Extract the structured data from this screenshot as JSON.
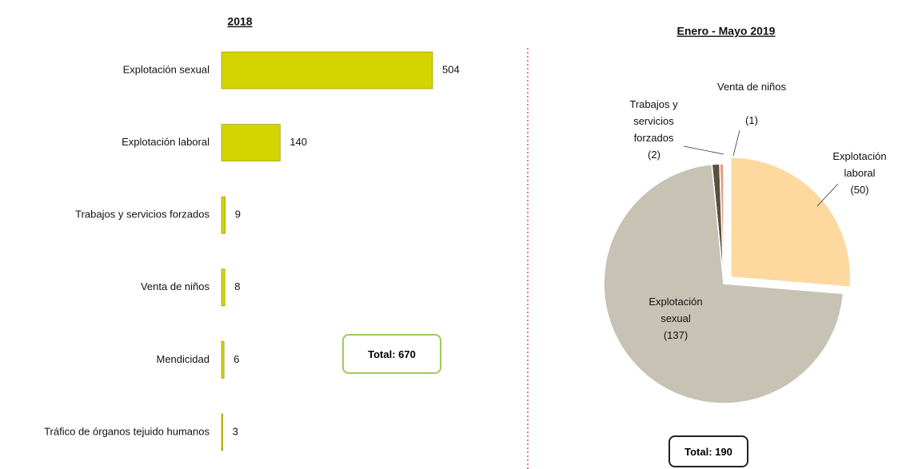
{
  "chart_data": [
    {
      "type": "bar",
      "title": "2018",
      "categories": [
        "Explotación sexual",
        "Explotación laboral",
        "Trabajos y servicios forzados",
        "Venta de niños",
        "Mendicidad",
        "Tráfico de órganos tejuido humanos"
      ],
      "values": [
        504,
        140,
        9,
        8,
        6,
        3
      ],
      "color": "#d4d400",
      "annotation": "Total: 670"
    },
    {
      "type": "pie",
      "title": "Enero - Mayo 2019",
      "categories": [
        "Trabajos y servicios forzados",
        "Venta de niños",
        "Explotación laboral",
        "Explotación sexual"
      ],
      "values": [
        2,
        1,
        50,
        137
      ],
      "value_labels": [
        "(2)",
        "(1)",
        "(50)",
        "(137)"
      ],
      "colors": [
        "#5a5040",
        "#e89a80",
        "#fdd9a0",
        "#c8c2b4"
      ],
      "annotation": "Total: 190"
    }
  ]
}
